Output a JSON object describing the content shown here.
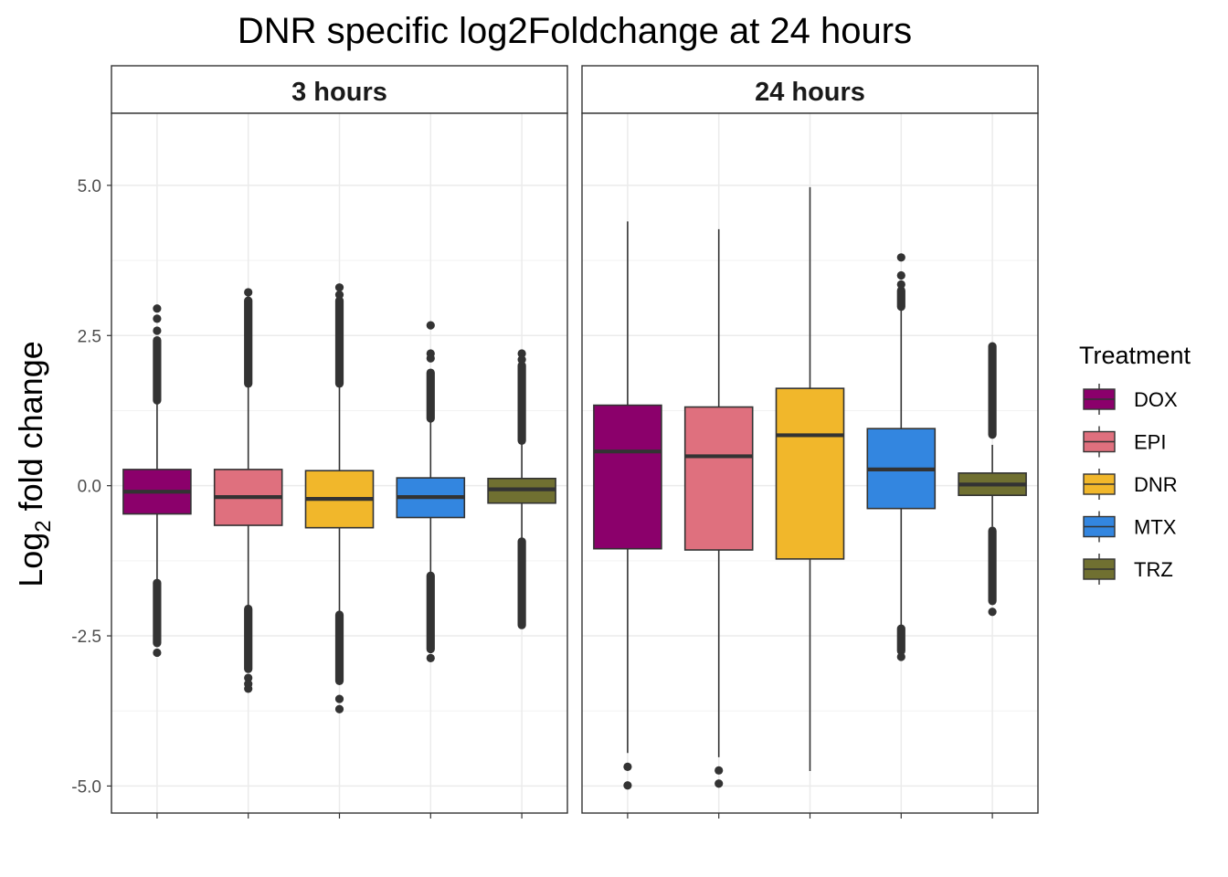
{
  "chart_data": {
    "type": "boxplot",
    "title": "DNR specific log2Foldchange at 24 hours",
    "ylabel_main": "Log",
    "ylabel_sub": "2",
    "ylabel_rest": " fold change",
    "ylim": [
      -5.45,
      6.2
    ],
    "y_ticks": [
      5.0,
      2.5,
      0.0,
      -2.5,
      -5.0
    ],
    "y_tick_labels": [
      "5.0",
      "2.5",
      "0.0",
      "-2.5",
      "-5.0"
    ],
    "grid": true,
    "legend": {
      "title": "Treatment",
      "placement": "right",
      "items": [
        {
          "label": "DOX",
          "color": "#8B006B"
        },
        {
          "label": "EPI",
          "color": "#DF707E"
        },
        {
          "label": "DNR",
          "color": "#F1B72B"
        },
        {
          "label": "MTX",
          "color": "#3386E0"
        },
        {
          "label": "TRZ",
          "color": "#707031"
        }
      ]
    },
    "panels": [
      {
        "label": "3 hours",
        "boxes": [
          {
            "treatment": "DOX",
            "q1": -0.47,
            "median": -0.1,
            "q3": 0.27,
            "whisker_low": -1.58,
            "whisker_high": 1.38,
            "outliers_high": [
              2.95,
              2.78,
              2.58
            ],
            "outliers_high_band": [
              1.42,
              2.42
            ],
            "outliers_low": [
              -2.78
            ],
            "outliers_low_band": [
              -2.62,
              -1.62
            ]
          },
          {
            "treatment": "EPI",
            "q1": -0.66,
            "median": -0.19,
            "q3": 0.27,
            "whisker_low": -2.02,
            "whisker_high": 1.67,
            "outliers_high": [
              3.22
            ],
            "outliers_high_band": [
              1.7,
              3.08
            ],
            "outliers_low": [
              -3.2,
              -3.3,
              -3.38
            ],
            "outliers_low_band": [
              -3.05,
              -2.05
            ]
          },
          {
            "treatment": "DNR",
            "q1": -0.7,
            "median": -0.22,
            "q3": 0.25,
            "whisker_low": -2.1,
            "whisker_high": 1.65,
            "outliers_high": [
              3.3,
              3.18
            ],
            "outliers_high_band": [
              1.7,
              3.08
            ],
            "outliers_low": [
              -3.55,
              -3.72
            ],
            "outliers_low_band": [
              -3.25,
              -2.15
            ]
          },
          {
            "treatment": "MTX",
            "q1": -0.53,
            "median": -0.19,
            "q3": 0.13,
            "whisker_low": -1.47,
            "whisker_high": 1.08,
            "outliers_high": [
              2.67,
              2.2,
              2.12
            ],
            "outliers_high_band": [
              1.12,
              1.88
            ],
            "outliers_low": [
              -2.87
            ],
            "outliers_low_band": [
              -2.72,
              -1.5
            ]
          },
          {
            "treatment": "TRZ",
            "q1": -0.29,
            "median": -0.06,
            "q3": 0.12,
            "whisker_low": -0.9,
            "whisker_high": 0.72,
            "outliers_high": [
              2.2,
              2.1
            ],
            "outliers_high_band": [
              0.75,
              2.0
            ],
            "outliers_low": [],
            "outliers_low_band": [
              -2.32,
              -0.93
            ]
          }
        ]
      },
      {
        "label": "24 hours",
        "boxes": [
          {
            "treatment": "DOX",
            "q1": -1.05,
            "median": 0.57,
            "q3": 1.34,
            "whisker_low": -4.45,
            "whisker_high": 4.4,
            "outliers_high": [],
            "outliers_high_band": null,
            "outliers_low": [
              -4.68,
              -4.99
            ],
            "outliers_low_band": null
          },
          {
            "treatment": "EPI",
            "q1": -1.07,
            "median": 0.49,
            "q3": 1.31,
            "whisker_low": -4.52,
            "whisker_high": 4.27,
            "outliers_high": [],
            "outliers_high_band": null,
            "outliers_low": [
              -4.74,
              -4.96
            ],
            "outliers_low_band": null
          },
          {
            "treatment": "DNR",
            "q1": -1.22,
            "median": 0.84,
            "q3": 1.62,
            "whisker_low": -4.75,
            "whisker_high": 4.97,
            "outliers_high": [],
            "outliers_high_band": null,
            "outliers_low": [],
            "outliers_low_band": null
          },
          {
            "treatment": "MTX",
            "q1": -0.38,
            "median": 0.27,
            "q3": 0.95,
            "whisker_low": -2.32,
            "whisker_high": 2.95,
            "outliers_high": [
              3.8,
              3.5,
              3.35
            ],
            "outliers_high_band": [
              2.98,
              3.25
            ],
            "outliers_low": [
              -2.85
            ],
            "outliers_low_band": [
              -2.75,
              -2.38
            ]
          },
          {
            "treatment": "TRZ",
            "q1": -0.16,
            "median": 0.02,
            "q3": 0.21,
            "whisker_low": -0.68,
            "whisker_high": 0.68,
            "outliers_high": [],
            "outliers_high_band": [
              0.85,
              2.32
            ],
            "outliers_low": [
              -2.1
            ],
            "outliers_low_band": [
              -1.92,
              -0.75
            ]
          }
        ]
      }
    ]
  }
}
